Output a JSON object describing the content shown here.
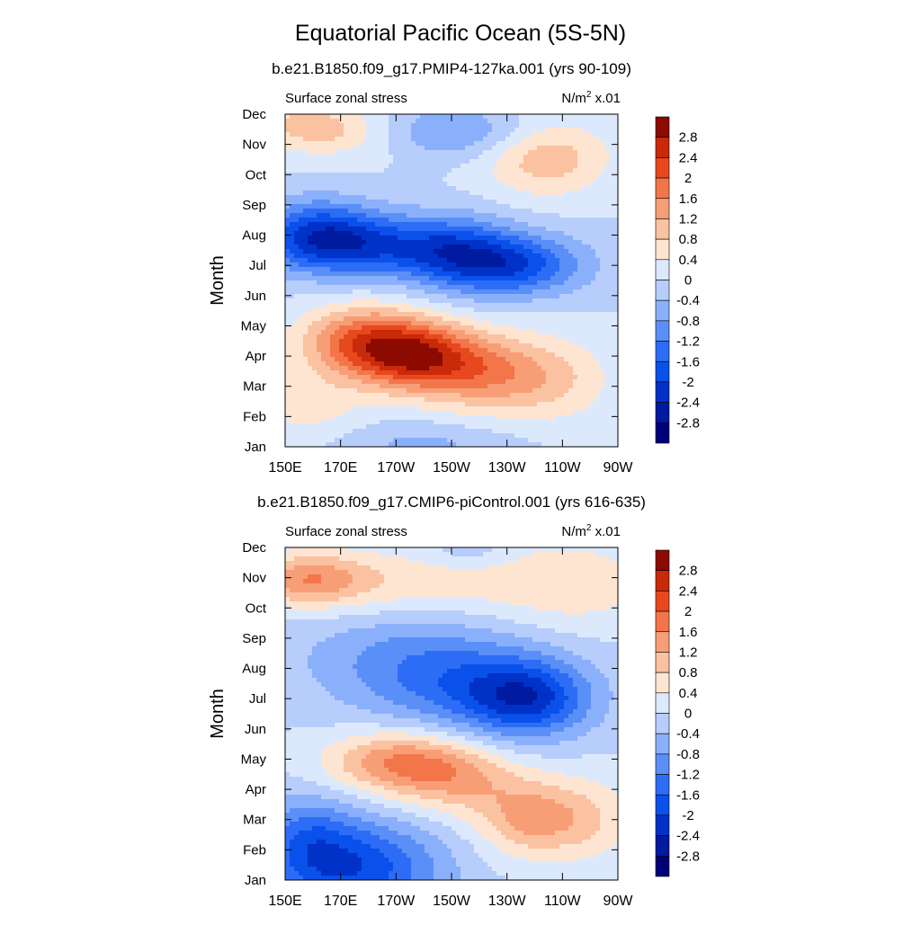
{
  "figure": {
    "title": "Equatorial Pacific Ocean (5S-5N)"
  },
  "chart_data": [
    {
      "type": "heatmap",
      "subtitle": "b.e21.B1850.f09_g17.PMIP4-127ka.001 (yrs 90-109)",
      "left_label": "Surface zonal stress",
      "units": "N/m",
      "units_sup": "2",
      "units_suffix": " x.01",
      "ylabel": "Month",
      "xlabel": "",
      "x_ticks": [
        "150E",
        "170E",
        "170W",
        "150W",
        "130W",
        "110W",
        "90W"
      ],
      "y_ticks": [
        "Jan",
        "Feb",
        "Mar",
        "Apr",
        "May",
        "Jun",
        "Jul",
        "Aug",
        "Sep",
        "Oct",
        "Nov",
        "Dec"
      ],
      "lon_range": [
        150,
        270
      ],
      "month_range": [
        1,
        12
      ],
      "colorbar_labels": [
        "2.8",
        "2.4",
        "2",
        "1.6",
        "1.2",
        "0.8",
        "0.4",
        "0",
        "-0.4",
        "-0.8",
        "-1.2",
        "-1.6",
        "-2",
        "-2.4",
        "-2.8"
      ],
      "features": [
        {
          "lon": 158,
          "month": 11.65,
          "amp": 0.9,
          "sx": 14,
          "sy": 0.6
        },
        {
          "lon": 178,
          "month": 11.3,
          "amp": 0.5,
          "sx": 16,
          "sy": 0.6
        },
        {
          "lon": 244,
          "month": 10.6,
          "amp": 1.1,
          "sx": 16,
          "sy": 0.9
        },
        {
          "lon": 210,
          "month": 11.4,
          "amp": -0.9,
          "sx": 22,
          "sy": 0.6
        },
        {
          "lon": 162,
          "month": 8.0,
          "amp": -1.9,
          "sx": 16,
          "sy": 0.8
        },
        {
          "lon": 190,
          "month": 7.6,
          "amp": -1.5,
          "sx": 24,
          "sy": 0.7
        },
        {
          "lon": 232,
          "month": 7.0,
          "amp": -1.8,
          "sx": 18,
          "sy": 0.7
        },
        {
          "lon": 212,
          "month": 7.4,
          "amp": -0.8,
          "sx": 14,
          "sy": 0.9
        },
        {
          "lon": 178,
          "month": 4.5,
          "amp": 1.8,
          "sx": 16,
          "sy": 0.8
        },
        {
          "lon": 198,
          "month": 3.95,
          "amp": 2.3,
          "sx": 16,
          "sy": 0.8
        },
        {
          "lon": 225,
          "month": 3.4,
          "amp": 1.3,
          "sx": 16,
          "sy": 0.9
        },
        {
          "lon": 250,
          "month": 3.2,
          "amp": 0.6,
          "sx": 14,
          "sy": 1.0
        },
        {
          "lon": 158,
          "month": 2.4,
          "amp": 0.6,
          "sx": 14,
          "sy": 0.8
        },
        {
          "lon": 200,
          "month": 1.1,
          "amp": -0.5,
          "sx": 22,
          "sy": 0.5
        }
      ]
    },
    {
      "type": "heatmap",
      "subtitle": "b.e21.B1850.f09_g17.CMIP6-piControl.001 (yrs 616-635)",
      "left_label": "Surface zonal stress",
      "units": "N/m",
      "units_sup": "2",
      "units_suffix": " x.01",
      "ylabel": "Month",
      "xlabel": "",
      "x_ticks": [
        "150E",
        "170E",
        "170W",
        "150W",
        "130W",
        "110W",
        "90W"
      ],
      "y_ticks": [
        "Jan",
        "Feb",
        "Mar",
        "Apr",
        "May",
        "Jun",
        "Jul",
        "Aug",
        "Sep",
        "Oct",
        "Nov",
        "Dec"
      ],
      "lon_range": [
        150,
        270
      ],
      "month_range": [
        1,
        12
      ],
      "colorbar_labels": [
        "2.8",
        "2.4",
        "2",
        "1.6",
        "1.2",
        "0.8",
        "0.4",
        "0",
        "-0.4",
        "-0.8",
        "-1.2",
        "-1.6",
        "-2",
        "-2.4",
        "-2.8"
      ],
      "features": [
        {
          "lon": 158,
          "month": 10.95,
          "amp": 1.3,
          "sx": 14,
          "sy": 0.6
        },
        {
          "lon": 190,
          "month": 10.8,
          "amp": 0.7,
          "sx": 28,
          "sy": 0.8
        },
        {
          "lon": 252,
          "month": 10.8,
          "amp": 0.7,
          "sx": 22,
          "sy": 1.0
        },
        {
          "lon": 216,
          "month": 11.9,
          "amp": -0.4,
          "sx": 10,
          "sy": 0.4
        },
        {
          "lon": 195,
          "month": 8.3,
          "amp": -0.9,
          "sx": 28,
          "sy": 1.2
        },
        {
          "lon": 238,
          "month": 7.0,
          "amp": -1.9,
          "sx": 16,
          "sy": 0.9
        },
        {
          "lon": 215,
          "month": 7.3,
          "amp": -0.8,
          "sx": 22,
          "sy": 1.0
        },
        {
          "lon": 190,
          "month": 4.9,
          "amp": 1.5,
          "sx": 18,
          "sy": 0.7
        },
        {
          "lon": 212,
          "month": 4.3,
          "amp": 1.0,
          "sx": 16,
          "sy": 0.8
        },
        {
          "lon": 240,
          "month": 3.05,
          "amp": 1.4,
          "sx": 14,
          "sy": 0.9
        },
        {
          "lon": 262,
          "month": 3.0,
          "amp": 0.5,
          "sx": 10,
          "sy": 1.0
        },
        {
          "lon": 175,
          "month": 1.4,
          "amp": -1.9,
          "sx": 22,
          "sy": 1.1
        },
        {
          "lon": 158,
          "month": 2.5,
          "amp": -0.9,
          "sx": 12,
          "sy": 1.0
        }
      ]
    }
  ]
}
